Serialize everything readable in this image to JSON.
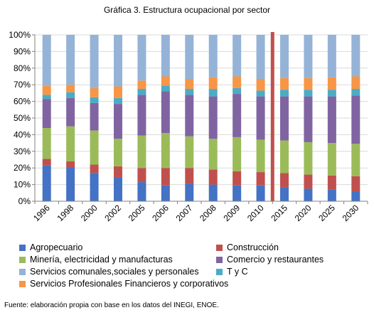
{
  "chart_data": {
    "type": "bar",
    "stacked": true,
    "title": "Gráfica 3. Estructura ocupacional por sector",
    "xlabel": "",
    "ylabel": "",
    "ylim": [
      0,
      100
    ],
    "yticks": [
      "0%",
      "10%",
      "20%",
      "30%",
      "40%",
      "50%",
      "60%",
      "70%",
      "80%",
      "90%",
      "100%"
    ],
    "categories": [
      "1996",
      "1998",
      "2000",
      "2002",
      "2005",
      "2006",
      "2007",
      "2008",
      "2009",
      "2010",
      "2015",
      "2020",
      "2025",
      "2030"
    ],
    "divider_between": [
      "2010",
      "2015"
    ],
    "grid": true,
    "legend_position": "bottom",
    "series": [
      {
        "name": "Agropecuario",
        "color": "#4472C4",
        "values": [
          21.5,
          20.5,
          17,
          14.5,
          11.5,
          9.5,
          10.5,
          10,
          9.5,
          9.5,
          8.5,
          7.5,
          7,
          6
        ]
      },
      {
        "name": "Construcción",
        "color": "#C0504D",
        "values": [
          4,
          3.5,
          5,
          6.5,
          8.5,
          10.5,
          9.5,
          9,
          8.5,
          8,
          8.5,
          8.5,
          8.5,
          9
        ]
      },
      {
        "name": "Minería, electricidad y manufacturas",
        "color": "#9BBB59",
        "values": [
          18.5,
          21,
          20.5,
          16.5,
          19.5,
          21,
          19,
          18.5,
          20.5,
          19.5,
          19.5,
          19.5,
          19.5,
          19.5
        ]
      },
      {
        "name": "Comercio y restaurantes",
        "color": "#8064A2",
        "values": [
          17.5,
          17,
          16.5,
          21,
          24.5,
          25,
          25,
          25.5,
          26,
          26,
          26.5,
          27.5,
          28,
          29
        ]
      },
      {
        "name": "T y C",
        "color": "#4BACC6",
        "values": [
          2.5,
          3.5,
          3.5,
          3.5,
          3.5,
          3.5,
          3.5,
          4.5,
          3.5,
          3.5,
          4,
          4,
          4,
          4
        ]
      },
      {
        "name": "Servicios Profesionales Financieros y corporativos",
        "color": "#F79646",
        "values": [
          5.5,
          4.5,
          5.5,
          7,
          5,
          5.5,
          6,
          7,
          7,
          7,
          7,
          7,
          7.5,
          7.5
        ]
      },
      {
        "name": "Servicios comunales,sociales y personales",
        "color": "#95B3D7",
        "values": [
          30.5,
          30,
          32,
          31,
          27.5,
          25,
          26.5,
          25.5,
          25,
          26.5,
          26,
          26,
          25.5,
          25
        ]
      }
    ]
  },
  "legend": {
    "items": [
      {
        "label": "Agropecuario",
        "color": "#4472C4"
      },
      {
        "label": "Construcción",
        "color": "#C0504D"
      },
      {
        "label": "Minería, electricidad y manufacturas",
        "color": "#9BBB59"
      },
      {
        "label": "Comercio y restaurantes",
        "color": "#8064A2"
      },
      {
        "label": "Servicios comunales,sociales y personales",
        "color": "#95B3D7"
      },
      {
        "label": "T y C",
        "color": "#4BACC6"
      },
      {
        "label": "Servicios Profesionales Financieros y corporativos",
        "color": "#F79646"
      }
    ]
  },
  "source_note": "Fuente: elaboración propia con base en los datos del INEGI, ENOE.",
  "divider_color": "#C0504D"
}
